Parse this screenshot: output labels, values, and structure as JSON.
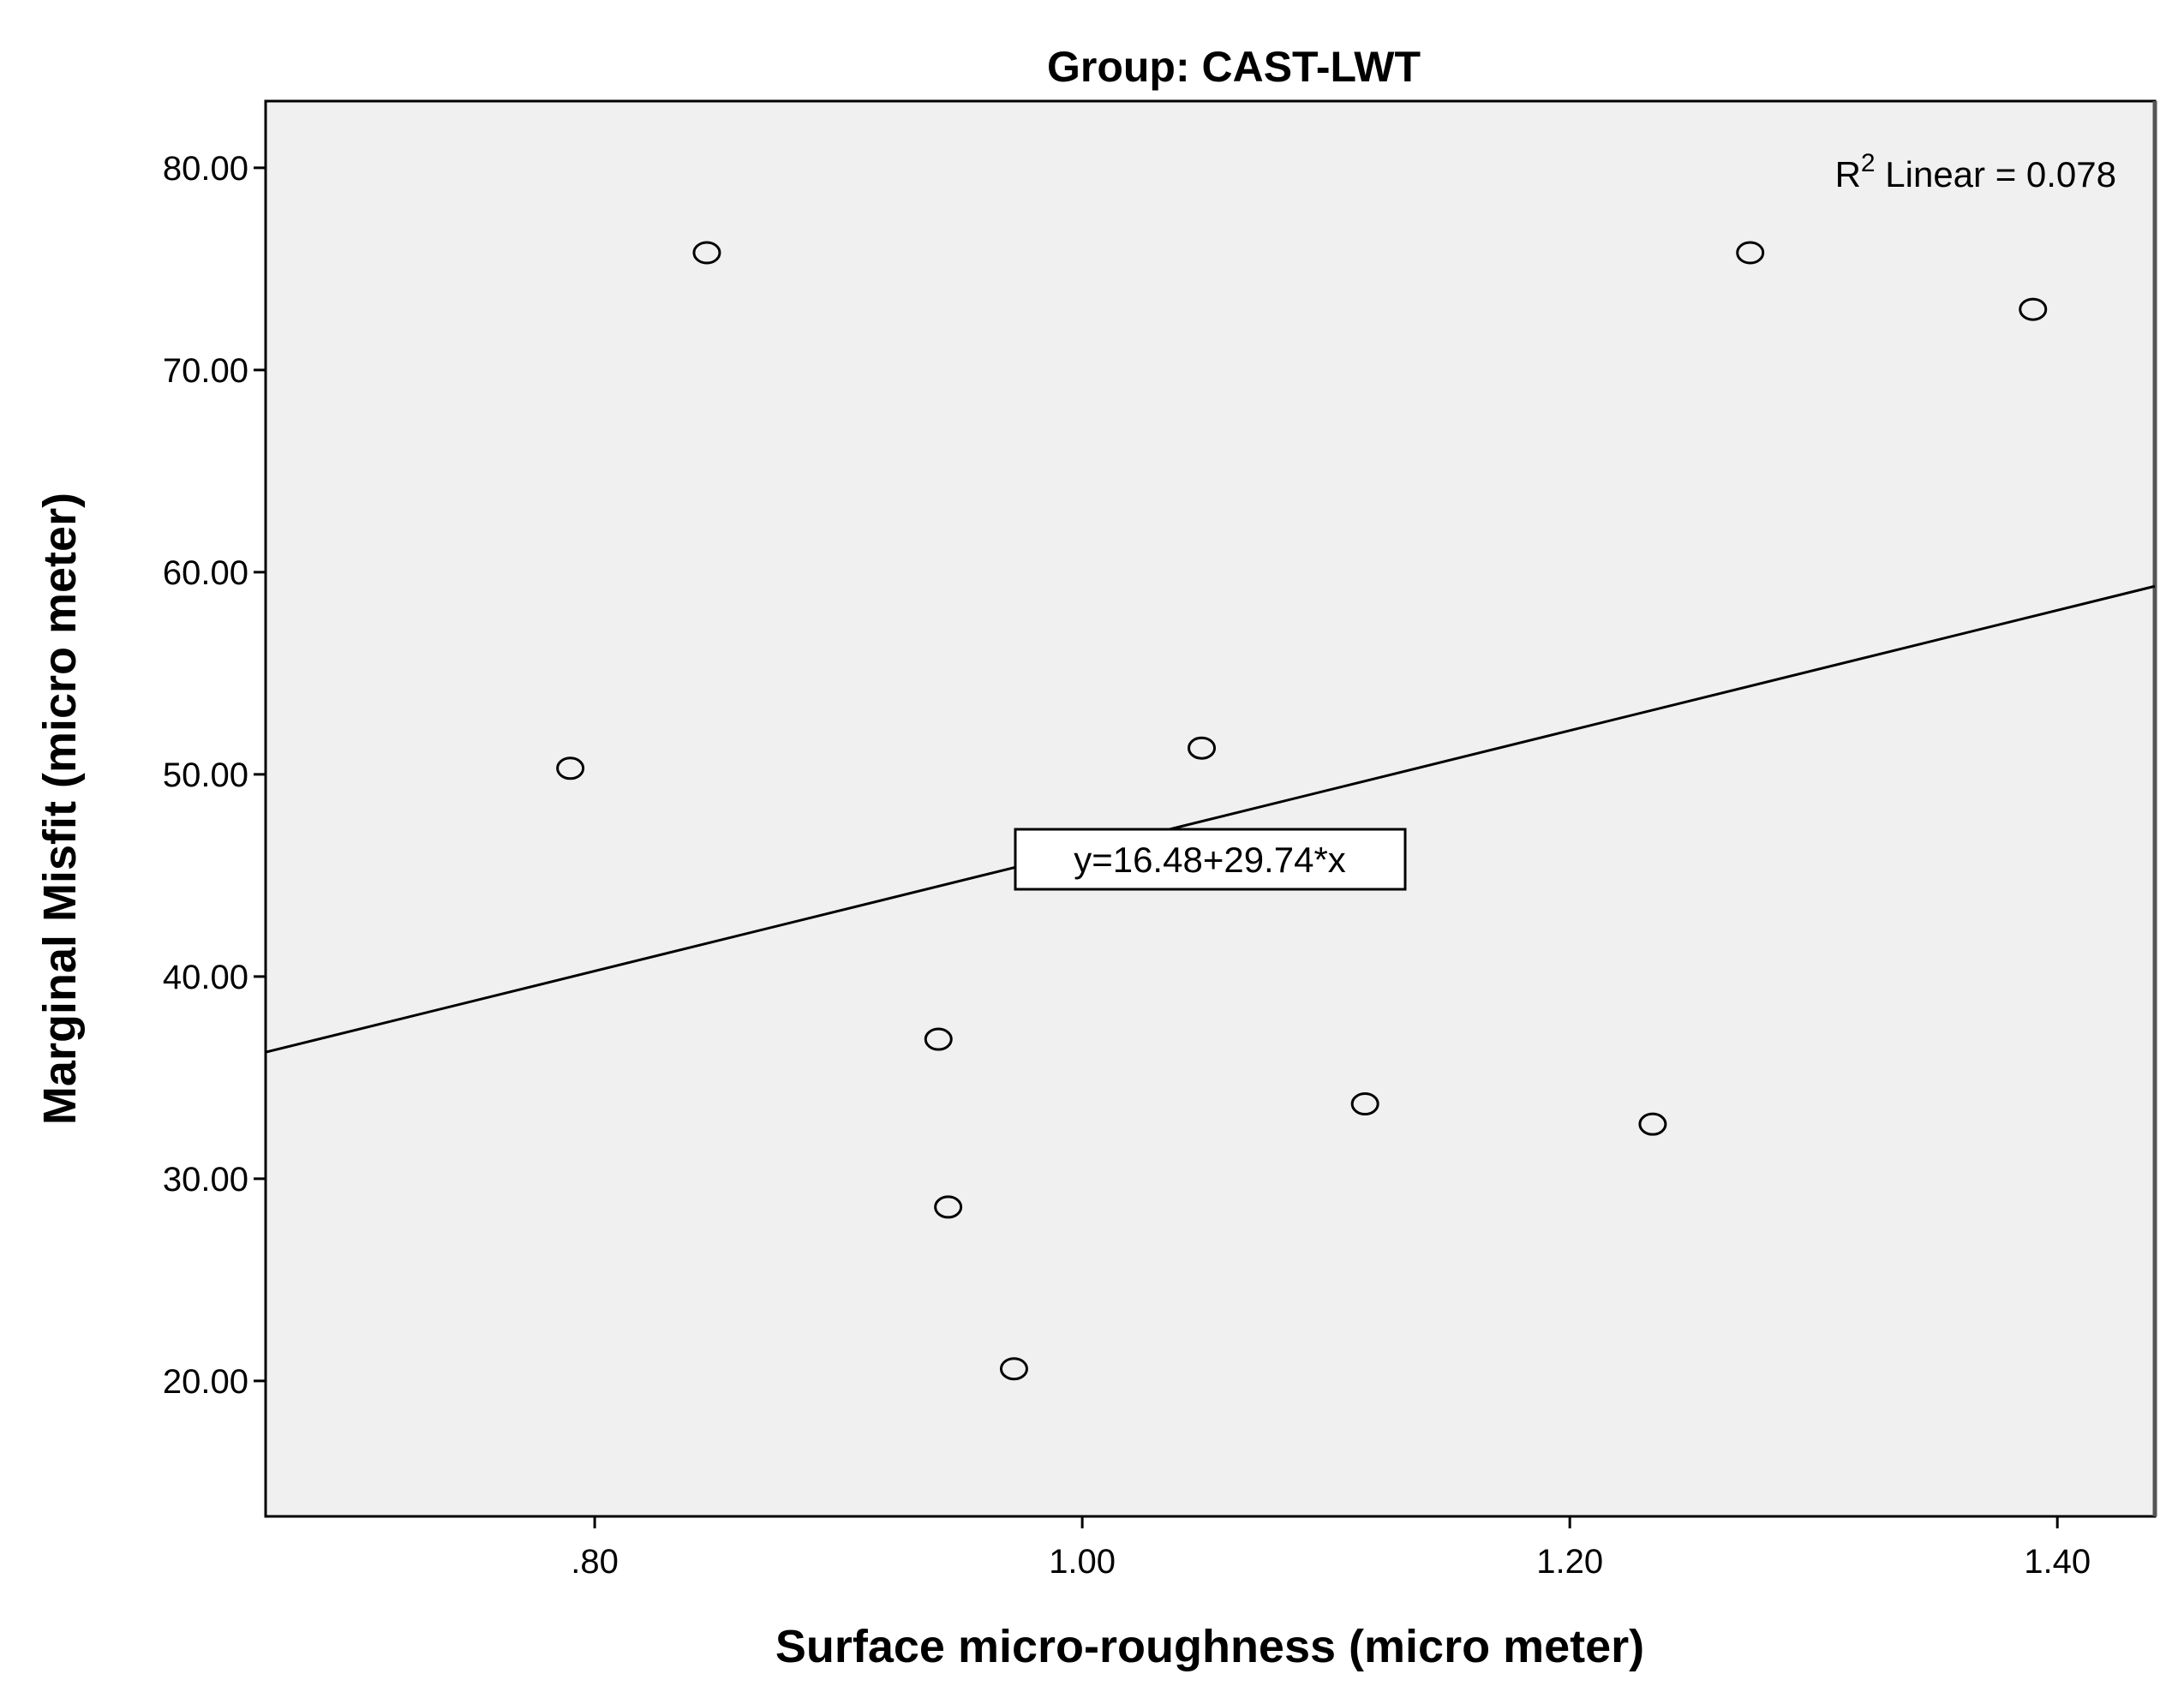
{
  "chart_data": {
    "type": "scatter",
    "title": "Group: CAST-LWT",
    "xlabel": "Surface micro-roughness (micro meter)",
    "ylabel": "Marginal Misfit (micro meter)",
    "xlim": [
      0.665,
      1.44
    ],
    "ylim": [
      13.3,
      83.3
    ],
    "x_ticks": [
      0.8,
      1.0,
      1.2,
      1.4
    ],
    "x_tick_labels": [
      ".80",
      "1.00",
      "1.20",
      "1.40"
    ],
    "y_ticks": [
      20,
      30,
      40,
      50,
      60,
      70,
      80
    ],
    "y_tick_labels": [
      "20.00",
      "30.00",
      "40.00",
      "50.00",
      "60.00",
      "70.00",
      "80.00"
    ],
    "grid": false,
    "marker": "open-circle",
    "points": [
      {
        "x": 0.79,
        "y": 50.3
      },
      {
        "x": 0.846,
        "y": 75.8
      },
      {
        "x": 0.941,
        "y": 36.9
      },
      {
        "x": 0.945,
        "y": 28.6
      },
      {
        "x": 0.972,
        "y": 20.6
      },
      {
        "x": 1.049,
        "y": 51.3
      },
      {
        "x": 1.116,
        "y": 33.7
      },
      {
        "x": 1.234,
        "y": 32.7
      },
      {
        "x": 1.274,
        "y": 75.8
      },
      {
        "x": 1.39,
        "y": 73.0
      }
    ],
    "fit_line": {
      "intercept": 16.48,
      "slope": 29.74
    },
    "equation_label": "y=16.48+29.74*x",
    "r2_label": {
      "prefix": "R",
      "superscript": "2",
      "text": " Linear = 0.078"
    },
    "colors": {
      "plot_background": "#f0f0f0",
      "frame": "#000000",
      "marker": "#000000",
      "line": "#000000"
    }
  }
}
